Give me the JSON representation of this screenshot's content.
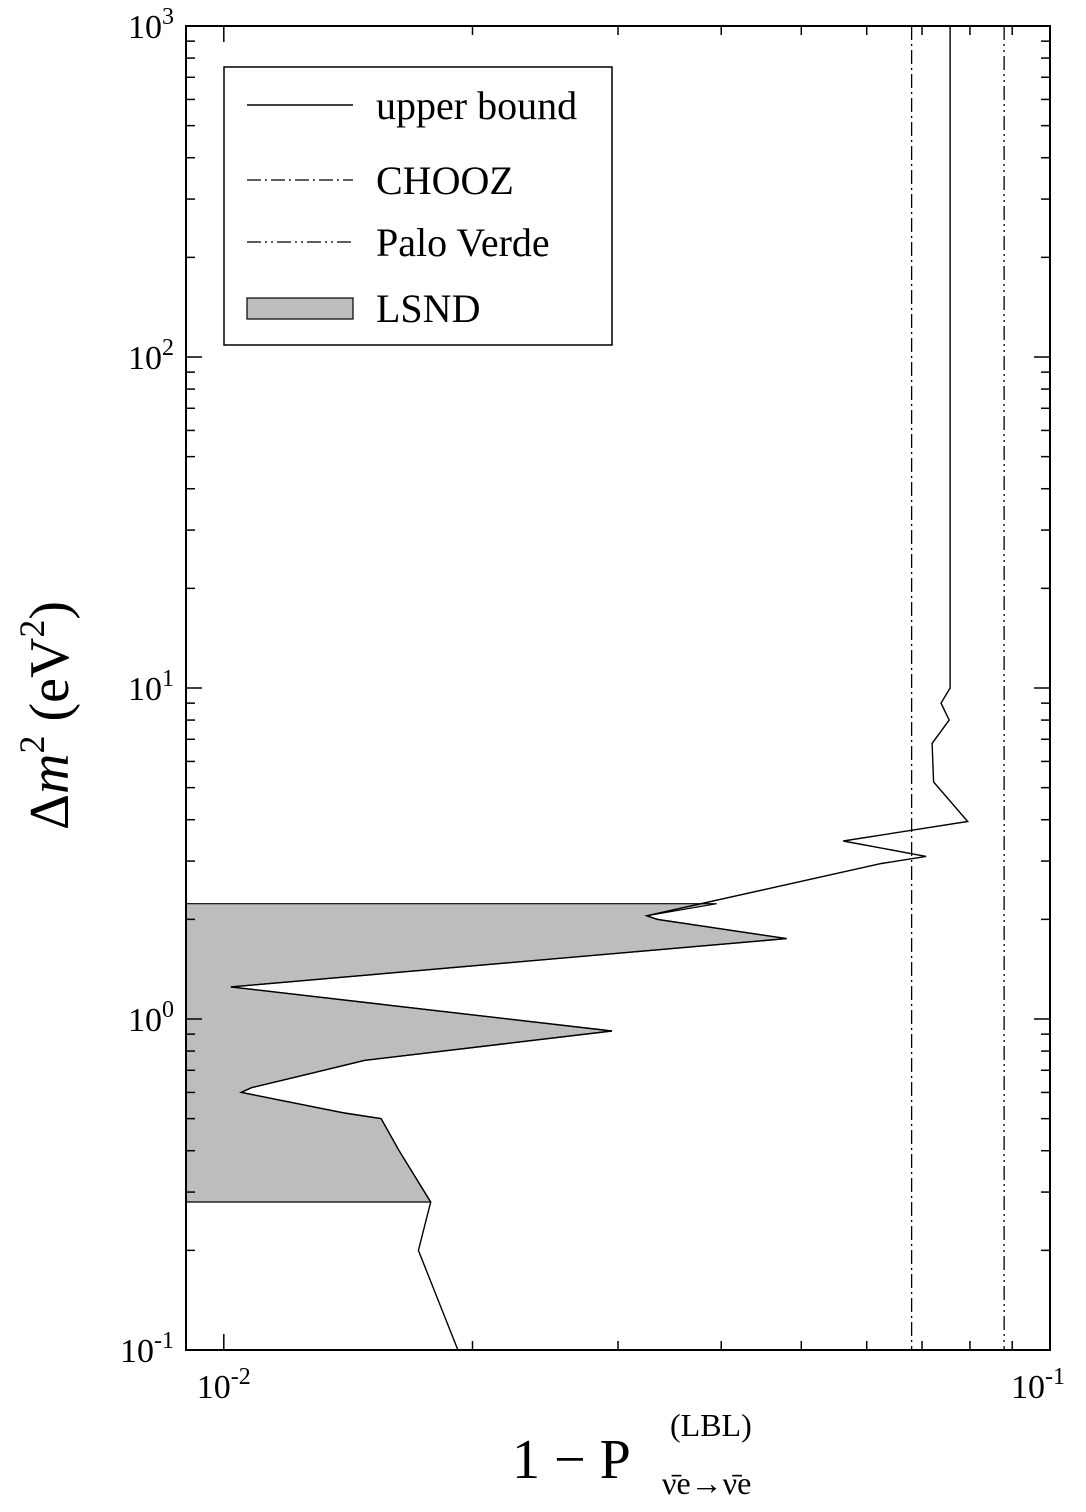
{
  "chart_data": {
    "type": "line",
    "xscale": "log",
    "yscale": "log",
    "xlim": [
      0.009,
      0.1
    ],
    "ylim": [
      0.1,
      1000
    ],
    "grid": false,
    "legend_position": "top-left",
    "x_ticks": [
      {
        "base": "10",
        "exp": "-2"
      },
      {
        "base": "10",
        "exp": "-1"
      }
    ],
    "y_ticks": [
      {
        "base": "10",
        "exp": "3"
      },
      {
        "base": "10",
        "exp": "2"
      },
      {
        "base": "10",
        "exp": "1"
      },
      {
        "base": "10",
        "exp": "0"
      },
      {
        "base": "10",
        "exp": "-1"
      }
    ],
    "xlabel": {
      "prefix": "1 − P",
      "superscript": "(LBL)",
      "subscript": "ν̄e→ν̄e"
    },
    "ylabel": {
      "delta": "Δ",
      "m": "m",
      "exp": "2",
      "unit_open": " (eV",
      "unit_exp": "2",
      "unit_close": ")"
    },
    "series": [
      {
        "name": "upper bound",
        "style": "solid",
        "points": [
          [
            0.0192,
            0.1
          ],
          [
            0.0172,
            0.2
          ],
          [
            0.0178,
            0.28
          ],
          [
            0.0163,
            0.4
          ],
          [
            0.0155,
            0.5
          ],
          [
            0.014,
            0.52
          ],
          [
            0.0105,
            0.6
          ],
          [
            0.0108,
            0.62
          ],
          [
            0.0126,
            0.68
          ],
          [
            0.0148,
            0.75
          ],
          [
            0.0295,
            0.92
          ],
          [
            0.0102,
            1.25
          ],
          [
            0.048,
            1.75
          ],
          [
            0.0335,
            2.0
          ],
          [
            0.0325,
            2.05
          ],
          [
            0.0625,
            2.95
          ],
          [
            0.0708,
            3.1
          ],
          [
            0.0562,
            3.45
          ],
          [
            0.0795,
            3.95
          ],
          [
            0.0723,
            5.2
          ],
          [
            0.072,
            6.8
          ],
          [
            0.0755,
            8.0
          ],
          [
            0.0738,
            9.0
          ],
          [
            0.0757,
            10.0
          ],
          [
            0.0757,
            1000
          ]
        ]
      },
      {
        "name": "CHOOZ",
        "style": "dashdot",
        "x": 0.068
      },
      {
        "name": "Palo Verde",
        "style": "dashdotdot",
        "x": 0.088
      },
      {
        "name": "LSND",
        "style": "fill",
        "color": "#bdbdbd",
        "y_range": [
          0.28,
          2.23
        ],
        "boundary": [
          [
            0.0178,
            0.28
          ],
          [
            0.0163,
            0.4
          ],
          [
            0.0155,
            0.5
          ],
          [
            0.014,
            0.52
          ],
          [
            0.0105,
            0.6
          ],
          [
            0.0108,
            0.62
          ],
          [
            0.0126,
            0.68
          ],
          [
            0.0148,
            0.75
          ],
          [
            0.0295,
            0.92
          ],
          [
            0.0102,
            1.25
          ],
          [
            0.048,
            1.75
          ],
          [
            0.0335,
            2.0
          ],
          [
            0.0325,
            2.05
          ],
          [
            0.0395,
            2.23
          ]
        ]
      }
    ]
  }
}
